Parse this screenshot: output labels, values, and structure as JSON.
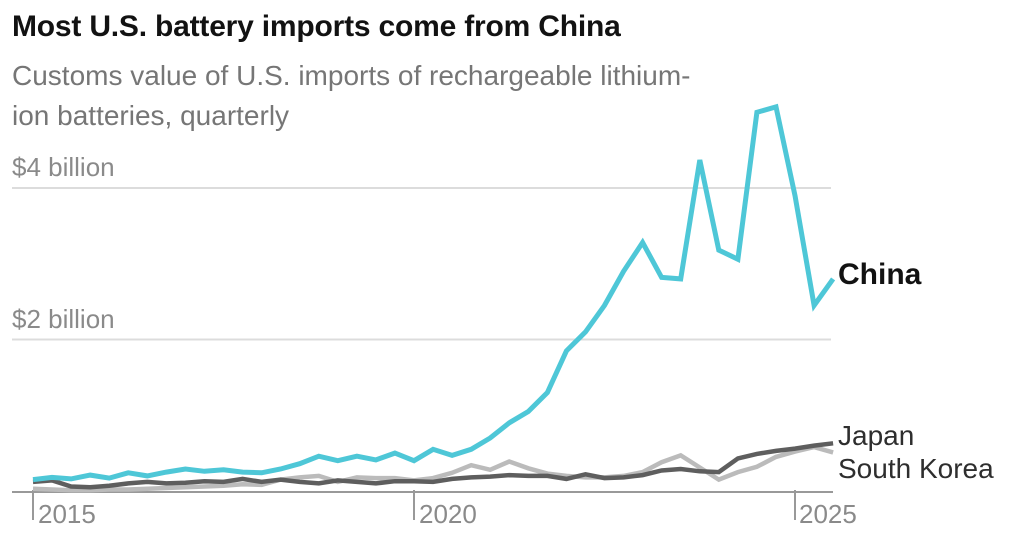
{
  "header": {
    "title": "Most U.S. battery imports come from China",
    "subtitle": "Customs value of U.S. imports of rechargeable lithium-ion batteries, quarterly"
  },
  "colors": {
    "china_line": "#4ec7d7",
    "japan_line": "#5e5e5e",
    "south_korea_line": "#bbbbbb",
    "gridline": "#dcdcdc",
    "axis": "#999999",
    "axis_label": "#8a8a8a",
    "title_text": "#121212",
    "subtitle_text": "#767676",
    "background": "#ffffff"
  },
  "chart_data": {
    "type": "line",
    "title": "Most U.S. battery imports come from China",
    "subtitle": "Customs value of U.S. imports of rechargeable lithium-ion batteries, quarterly",
    "unit": "billion USD",
    "frequency": "quarterly",
    "x_start": "2015 Q1",
    "x_end": "2025 Q3",
    "ylim": [
      0,
      5.3
    ],
    "grid": "horizontal-only",
    "legend_position": "line-end-labels",
    "x_ticks": [
      {
        "label": "2015",
        "quarter_index": 0
      },
      {
        "label": "2020",
        "quarter_index": 20
      },
      {
        "label": "2025",
        "quarter_index": 40
      }
    ],
    "y_gridlines": [
      {
        "value": 4,
        "label": "$4 billion"
      },
      {
        "value": 2,
        "label": "$2 billion"
      }
    ],
    "series": [
      {
        "name": "China",
        "color": "#4ec7d7",
        "values": [
          0.15,
          0.18,
          0.16,
          0.21,
          0.17,
          0.24,
          0.2,
          0.25,
          0.29,
          0.26,
          0.28,
          0.25,
          0.24,
          0.29,
          0.36,
          0.46,
          0.4,
          0.46,
          0.41,
          0.5,
          0.4,
          0.55,
          0.47,
          0.55,
          0.7,
          0.9,
          1.05,
          1.3,
          1.85,
          2.1,
          2.45,
          2.9,
          3.28,
          2.82,
          2.8,
          4.37,
          3.18,
          3.06,
          5.0,
          5.07,
          3.9,
          2.45,
          2.8
        ]
      },
      {
        "name": "Japan",
        "color": "#5e5e5e",
        "values": [
          0.12,
          0.14,
          0.06,
          0.05,
          0.07,
          0.1,
          0.12,
          0.1,
          0.11,
          0.13,
          0.12,
          0.16,
          0.12,
          0.15,
          0.12,
          0.1,
          0.14,
          0.12,
          0.1,
          0.13,
          0.13,
          0.12,
          0.16,
          0.18,
          0.19,
          0.21,
          0.2,
          0.2,
          0.16,
          0.22,
          0.17,
          0.18,
          0.21,
          0.27,
          0.29,
          0.26,
          0.25,
          0.43,
          0.49,
          0.53,
          0.56,
          0.6,
          0.63
        ]
      },
      {
        "name": "South Korea",
        "color": "#bbbbbb",
        "values": [
          0.03,
          0.02,
          0.01,
          0.01,
          0.02,
          0.02,
          0.03,
          0.04,
          0.05,
          0.06,
          0.07,
          0.09,
          0.08,
          0.15,
          0.18,
          0.2,
          0.12,
          0.18,
          0.17,
          0.17,
          0.14,
          0.17,
          0.24,
          0.34,
          0.28,
          0.39,
          0.3,
          0.23,
          0.2,
          0.18,
          0.18,
          0.2,
          0.25,
          0.38,
          0.47,
          0.31,
          0.15,
          0.25,
          0.32,
          0.45,
          0.52,
          0.58,
          0.51
        ]
      }
    ]
  }
}
